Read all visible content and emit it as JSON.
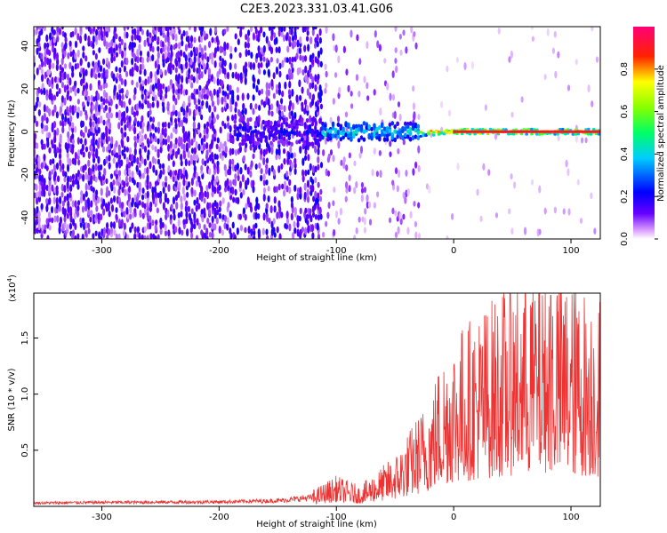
{
  "figure_title": "C2E3.2023.331.03.41.G06",
  "chart_data": [
    {
      "type": "heatmap",
      "title": "C2E3.2023.331.03.41.G06",
      "xlabel": "Height of straight line (km)",
      "ylabel": "Frequency (Hz)",
      "xlim": [
        -358,
        125
      ],
      "ylim": [
        -50,
        49
      ],
      "x_ticks": [
        -300,
        -200,
        -100,
        0,
        100
      ],
      "x_tick_labels": [
        "-300",
        "-200",
        "-100",
        "0",
        "100"
      ],
      "y_ticks": [
        -40,
        -20,
        0,
        20,
        40
      ],
      "y_tick_labels": [
        "-40",
        "-20",
        "0",
        "20",
        "40"
      ],
      "colorbar": {
        "label": "Normalized spectral amplitude",
        "range": [
          0,
          1
        ],
        "ticks": [
          0.0,
          0.2,
          0.4,
          0.6,
          0.8
        ],
        "tick_labels": [
          "0.0",
          "0.2",
          "0.4",
          "0.6",
          "0.8"
        ],
        "colormap": [
          "#ffffff",
          "#6600ff",
          "#0000ff",
          "#00ffff",
          "#00ff00",
          "#ffff00",
          "#ff0000",
          "#ff0066"
        ]
      },
      "regions": [
        {
          "x_range": [
            -358,
            -190
          ],
          "description": "noise",
          "amplitude": 0.15
        },
        {
          "x_range": [
            -190,
            -112
          ],
          "description": "noise with weak signal",
          "amplitude": 0.2
        },
        {
          "x_range": [
            -112,
            -30
          ],
          "description": "strong signal near 0 Hz",
          "amplitude": 0.45
        },
        {
          "x_range": [
            -30,
            125
          ],
          "description": "clean signal line at 0 Hz",
          "amplitude": 0.9
        }
      ]
    },
    {
      "type": "line",
      "xlabel": "Height of straight line (km)",
      "ylabel": "SNR (10 * v/v)",
      "scale_label": "(x10",
      "scale_exponent": "4",
      "scale_suffix": ")",
      "xlim": [
        -358,
        125
      ],
      "ylim": [
        0,
        1.9
      ],
      "x_ticks": [
        -300,
        -200,
        -100,
        0,
        100
      ],
      "x_tick_labels": [
        "-300",
        "-200",
        "-100",
        "0",
        "100"
      ],
      "y_ticks": [
        0.5,
        1.0,
        1.5
      ],
      "y_tick_labels": [
        "0.5",
        "1.0",
        "1.5"
      ],
      "color": "#ee3333",
      "envelope": {
        "x": [
          -358,
          -300,
          -200,
          -150,
          -120,
          -100,
          -80,
          -50,
          -40,
          -30,
          -20,
          -10,
          0,
          20,
          40,
          60,
          80,
          100,
          120,
          125
        ],
        "y": [
          0.03,
          0.035,
          0.04,
          0.05,
          0.08,
          0.15,
          0.1,
          0.25,
          0.35,
          0.45,
          0.55,
          0.75,
          0.85,
          0.95,
          1.05,
          1.15,
          1.2,
          1.1,
          1.05,
          1.05
        ]
      }
    }
  ]
}
